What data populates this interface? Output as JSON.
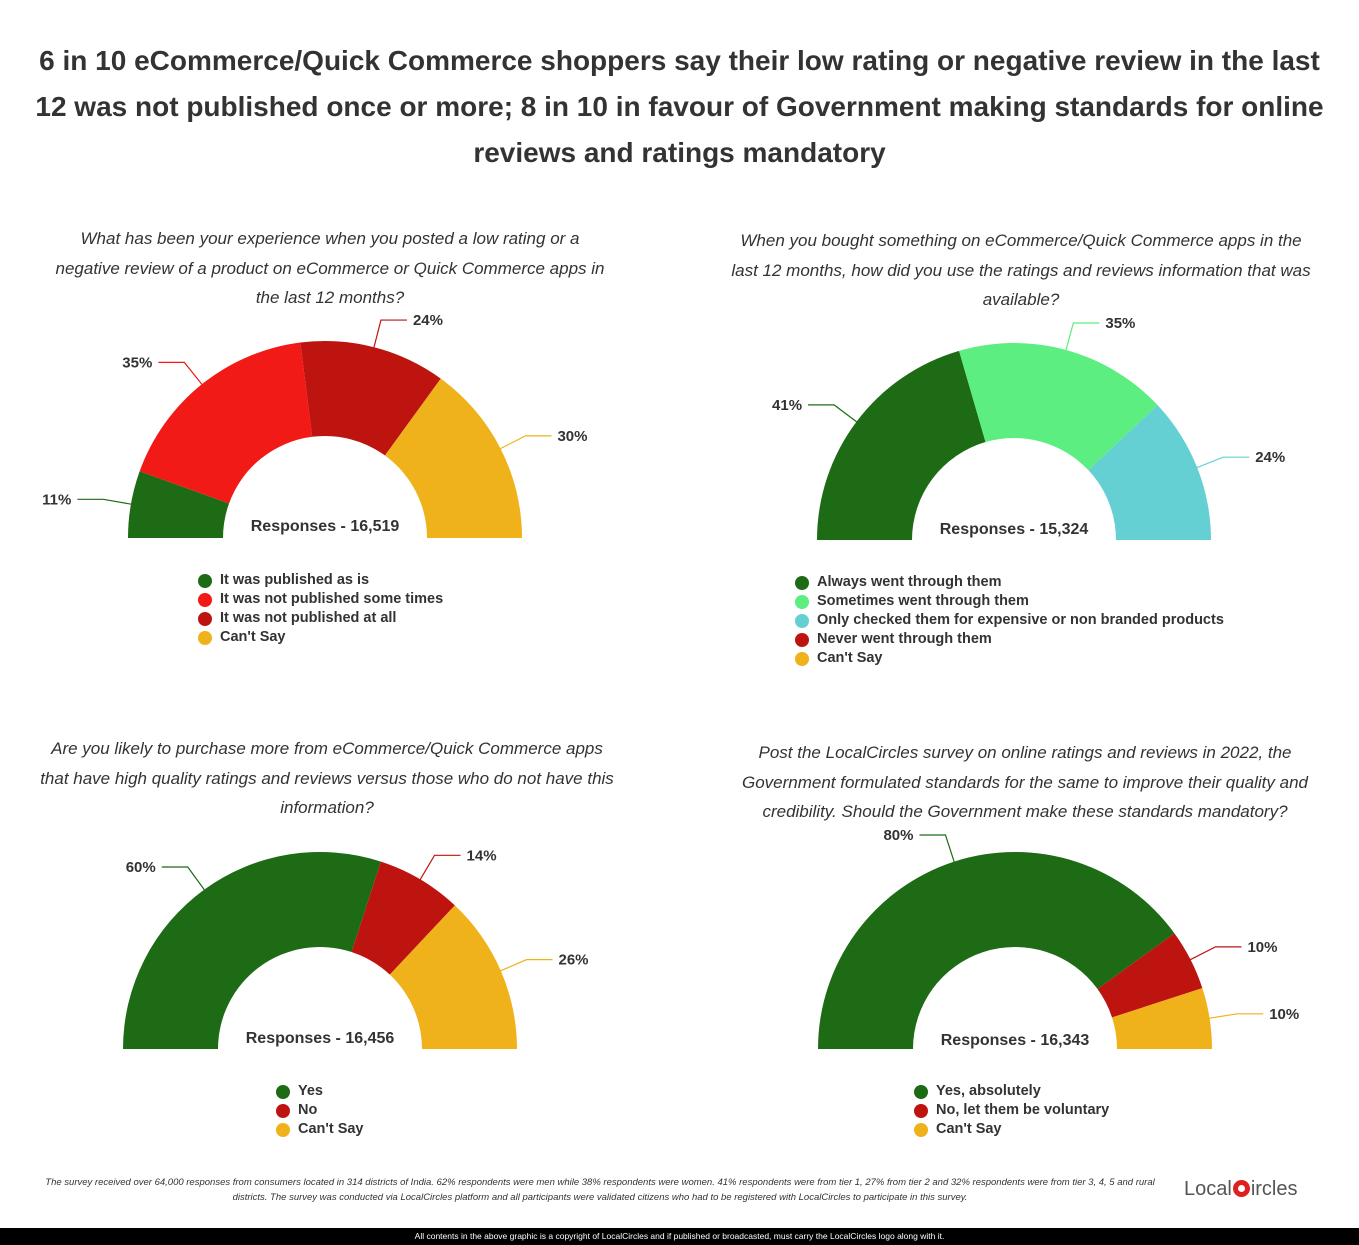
{
  "title": "6 in 10 eCommerce/Quick Commerce shoppers say their low rating or negative review in the last 12 was not published once or more; 8 in 10 in favour of Government making standards for online reviews and ratings mandatory",
  "chart_data": [
    {
      "type": "pie",
      "question": "What has been your experience when you posted a low rating or a negative review of a product on eCommerce or Quick Commerce apps in the last 12 months?",
      "responses": "Responses - 16,519",
      "categories": [
        "It was published as is",
        "It was not published some times",
        "It was not published at all",
        "Can't Say"
      ],
      "values": [
        11,
        35,
        24,
        30
      ],
      "labels": [
        "11%",
        "35%",
        "24%",
        "30%"
      ],
      "colors": [
        "#1d6b14",
        "#f21a16",
        "#be1410",
        "#efb21a"
      ],
      "legend": [
        {
          "label": "It was published as is",
          "color": "#1d6b14"
        },
        {
          "label": "It was not published some times",
          "color": "#f21a16"
        },
        {
          "label": "It was not published at all",
          "color": "#be1410"
        },
        {
          "label": "Can't Say",
          "color": "#efb21a"
        }
      ]
    },
    {
      "type": "pie",
      "question": "When you bought something on eCommerce/Quick Commerce apps in the last 12 months, how did you use the ratings and reviews information that was available?",
      "responses": "Responses - 15,324",
      "categories": [
        "Always went through them",
        "Sometimes went through them",
        "Only checked them for expensive or non branded products"
      ],
      "values": [
        41,
        35,
        24
      ],
      "labels": [
        "41%",
        "35%",
        "24%"
      ],
      "colors": [
        "#1d6b14",
        "#5cee80",
        "#65d0d3"
      ],
      "legend": [
        {
          "label": "Always went through them",
          "color": "#1d6b14"
        },
        {
          "label": "Sometimes went through them",
          "color": "#5cee80"
        },
        {
          "label": "Only checked them for expensive or non branded products",
          "color": "#65d0d3"
        },
        {
          "label": "Never went through them",
          "color": "#be1410"
        },
        {
          "label": "Can't Say",
          "color": "#efb21a"
        }
      ]
    },
    {
      "type": "pie",
      "question": "Are you likely to purchase more from eCommerce/Quick Commerce apps that have high quality ratings and reviews versus those who do not have this information?",
      "responses": "Responses - 16,456",
      "categories": [
        "Yes",
        "No",
        "Can't Say"
      ],
      "values": [
        60,
        14,
        26
      ],
      "labels": [
        "60%",
        "14%",
        "26%"
      ],
      "colors": [
        "#1d6b14",
        "#be1410",
        "#efb21a"
      ],
      "legend": [
        {
          "label": "Yes",
          "color": "#1d6b14"
        },
        {
          "label": "No",
          "color": "#be1410"
        },
        {
          "label": "Can't Say",
          "color": "#efb21a"
        }
      ]
    },
    {
      "type": "pie",
      "question": "Post the LocalCircles survey on online ratings and reviews in 2022, the Government formulated standards for the same to improve their quality and credibility. Should the Government make these standards mandatory?",
      "responses": "Responses - 16,343",
      "categories": [
        "Yes, absolutely",
        "No, let them be voluntary",
        "Can't Say"
      ],
      "values": [
        80,
        10,
        10
      ],
      "labels": [
        "80%",
        "10%",
        "10%"
      ],
      "colors": [
        "#1d6b14",
        "#be1410",
        "#efb21a"
      ],
      "legend": [
        {
          "label": "Yes, absolutely",
          "color": "#1d6b14"
        },
        {
          "label": "No, let them be voluntary",
          "color": "#be1410"
        },
        {
          "label": "Can't Say",
          "color": "#efb21a"
        }
      ]
    }
  ],
  "footnote": "The survey received over 64,000 responses from consumers located in 314 districts of India. 62% respondents were men while 38% respondents were women. 41% respondents were from tier 1, 27% from tier 2 and 32% respondents were from tier 3, 4, 5 and rural districts. The survey was conducted via LocalCircles platform and all participants were validated citizens who had to be registered with LocalCircles to participate in this survey.",
  "logo": {
    "part1": "Local",
    "part2": "ircles"
  },
  "copyright": "All contents in the above graphic is a copyright of LocalCircles and if published or broadcasted, must carry the LocalCircles logo along with it."
}
